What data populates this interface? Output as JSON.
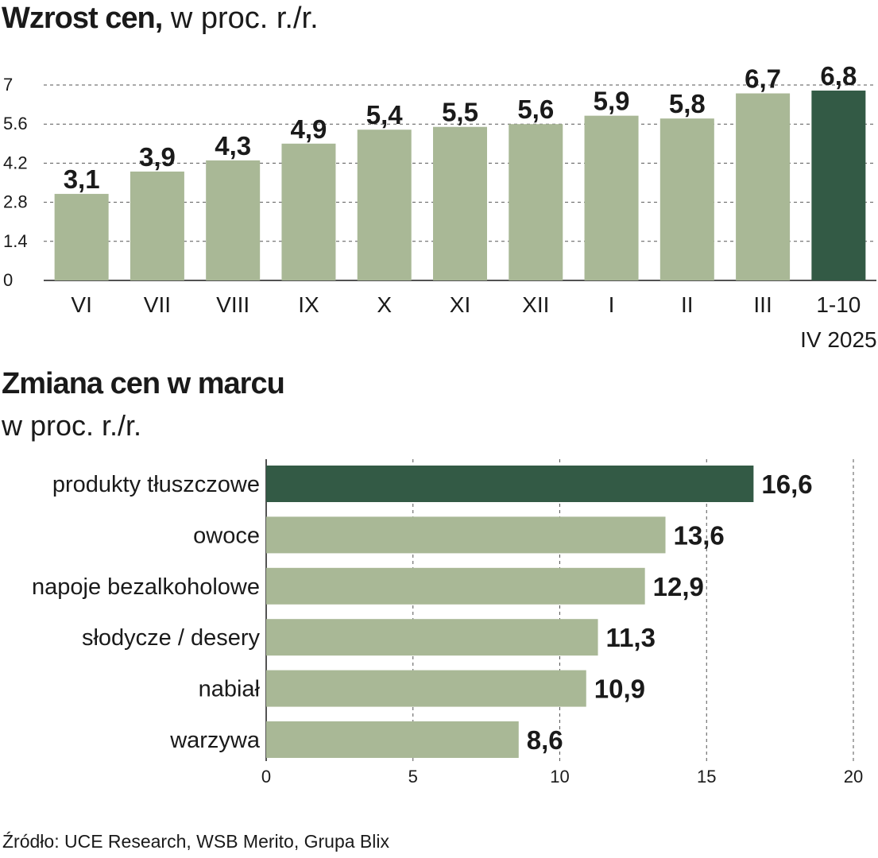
{
  "chart_data": [
    {
      "type": "bar",
      "title": "Wzrost cen,",
      "subtitle": "w proc. r./r.",
      "categories": [
        "VI",
        "VII",
        "VIII",
        "IX",
        "X",
        "XI",
        "XII",
        "I",
        "II",
        "III",
        "1-10"
      ],
      "category_sublabels": [
        "",
        "",
        "",
        "",
        "",
        "",
        "",
        "",
        "",
        "",
        "IV 2025"
      ],
      "values": [
        3.1,
        3.9,
        4.3,
        4.9,
        5.4,
        5.5,
        5.6,
        5.9,
        5.8,
        6.7,
        6.8
      ],
      "value_labels": [
        "3,1",
        "3,9",
        "4,3",
        "4,9",
        "5,4",
        "5,5",
        "5,6",
        "5,9",
        "5,8",
        "6,7",
        "6,8"
      ],
      "highlight_index": 10,
      "yticks": [
        0,
        1.4,
        2.8,
        4.2,
        5.6,
        7
      ],
      "ytick_labels": [
        "0",
        "1.4",
        "2.8",
        "4.2",
        "5.6",
        "7"
      ],
      "ylim": [
        0,
        7
      ],
      "grid": true
    },
    {
      "type": "bar",
      "orientation": "horizontal",
      "title": "Zmiana cen w marcu",
      "subtitle": "w proc. r./r.",
      "categories": [
        "produkty tłuszczowe",
        "owoce",
        "napoje bezalkoholowe",
        "słodycze / desery",
        "nabiał",
        "warzywa"
      ],
      "values": [
        16.6,
        13.6,
        12.9,
        11.3,
        10.9,
        8.6
      ],
      "value_labels": [
        "16,6",
        "13,6",
        "12,9",
        "11,3",
        "10,9",
        "8,6"
      ],
      "highlight_index": 0,
      "xticks": [
        0,
        5,
        10,
        15,
        20
      ],
      "xtick_labels": [
        "0",
        "5",
        "10",
        "15",
        "20"
      ],
      "xlim": [
        0,
        20
      ],
      "grid": true
    }
  ],
  "colors": {
    "bar": "#a9b896",
    "highlight": "#335a45",
    "grid": "#555555",
    "text": "#1a1a1a"
  },
  "source": "Źródło: UCE Research, WSB Merito, Grupa Blix"
}
